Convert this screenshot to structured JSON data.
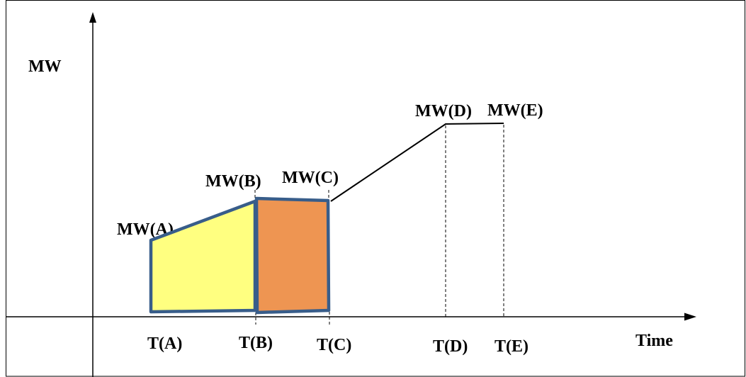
{
  "axes": {
    "y_axis_label": "MW",
    "x_axis_label": "Time"
  },
  "points": {
    "a": {
      "mw_label": "MW(A)",
      "time_label": "T(A)"
    },
    "b": {
      "mw_label": "MW(B)",
      "time_label": "T(B)"
    },
    "c": {
      "mw_label": "MW(C)",
      "time_label": "T(C)"
    },
    "d": {
      "mw_label": "MW(D)",
      "time_label": "T(D)"
    },
    "e": {
      "mw_label": "MW(E)",
      "time_label": "T(E)"
    }
  },
  "colors": {
    "segment_a_b_fill": "#FFFF80",
    "segment_b_c_fill": "#EE9552",
    "segment_outline": "#385D8A",
    "line": "#000000"
  }
}
